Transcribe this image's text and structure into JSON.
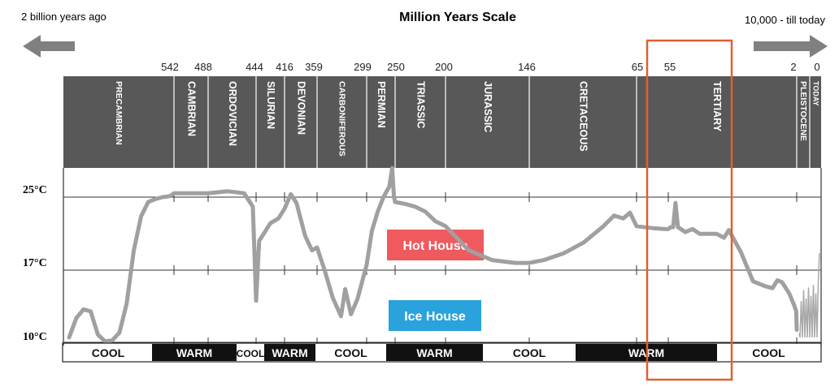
{
  "chart_data": {
    "type": "line",
    "title": "Million Years Scale",
    "left_label": "2 billion years ago",
    "right_label": "10,000 - till today",
    "time_ticks": [
      "542",
      "488",
      "444",
      "416",
      "359",
      "299",
      "250",
      "200",
      "146",
      "65",
      "55",
      "2",
      "0"
    ],
    "periods": [
      "PRECAMBRIAN",
      "CAMBRIAN",
      "ORDOVICIAN",
      "SILURIAN",
      "DEVONIAN",
      "CARBONIFEROUS",
      "PERMIAN",
      "TRIASSIC",
      "JURASSIC",
      "CRETACEOUS",
      "TERTIARY",
      "PLEISTOCENE",
      "TODAY"
    ],
    "y_ticks": [
      "25°C",
      "17°C",
      "10°C"
    ],
    "ylim": [
      10,
      25
    ],
    "climate_bar": [
      "COOL",
      "WARM",
      "COOL",
      "WARM",
      "COOL",
      "WARM",
      "COOL",
      "WARM",
      "COOL"
    ],
    "climate_types": [
      "cool",
      "warm",
      "cool",
      "warm",
      "cool",
      "warm",
      "cool",
      "warm",
      "cool"
    ],
    "annotations": {
      "hot_house": "Hot House",
      "ice_house": "Ice House"
    },
    "highlight_period": "TERTIARY",
    "series": [
      {
        "values": [
          [
            2000,
            10.5
          ],
          [
            1900,
            12.5
          ],
          [
            1800,
            13.4
          ],
          [
            1700,
            13.2
          ],
          [
            1600,
            10.8
          ],
          [
            1500,
            10.1
          ],
          [
            1400,
            10.2
          ],
          [
            1300,
            11
          ],
          [
            1200,
            14
          ],
          [
            1100,
            19.5
          ],
          [
            1000,
            23
          ],
          [
            900,
            24.5
          ],
          [
            800,
            24.8
          ],
          [
            700,
            25
          ],
          [
            600,
            25.1
          ],
          [
            560,
            25.3
          ],
          [
            542,
            25.4
          ],
          [
            520,
            25.4
          ],
          [
            488,
            25.4
          ],
          [
            470,
            25.6
          ],
          [
            455,
            25.4
          ],
          [
            447,
            24
          ],
          [
            444,
            14.3
          ],
          [
            441,
            20.5
          ],
          [
            436,
            21.3
          ],
          [
            430,
            22.3
          ],
          [
            422,
            22.8
          ],
          [
            416,
            23.8
          ],
          [
            405,
            25.3
          ],
          [
            395,
            24.4
          ],
          [
            380,
            21
          ],
          [
            368,
            19.5
          ],
          [
            359,
            19.8
          ],
          [
            350,
            17.5
          ],
          [
            340,
            14.6
          ],
          [
            330,
            12.7
          ],
          [
            325,
            15.5
          ],
          [
            318,
            12.9
          ],
          [
            310,
            14.5
          ],
          [
            299,
            18
          ],
          [
            290,
            21.5
          ],
          [
            280,
            23.5
          ],
          [
            270,
            25
          ],
          [
            260,
            26.1
          ],
          [
            255,
            28
          ],
          [
            252,
            25
          ],
          [
            250,
            24.5
          ],
          [
            240,
            24.3
          ],
          [
            230,
            24
          ],
          [
            220,
            23.5
          ],
          [
            210,
            22.5
          ],
          [
            200,
            22
          ],
          [
            185,
            19.5
          ],
          [
            170,
            18.5
          ],
          [
            155,
            18.2
          ],
          [
            146,
            18.2
          ],
          [
            135,
            18.5
          ],
          [
            120,
            19.2
          ],
          [
            105,
            20.3
          ],
          [
            90,
            22
          ],
          [
            82,
            23.1
          ],
          [
            75,
            22.8
          ],
          [
            70,
            23.4
          ],
          [
            65,
            22
          ],
          [
            60,
            21.8
          ],
          [
            56,
            21.7
          ],
          [
            55,
            21.7
          ],
          [
            54,
            21.9
          ],
          [
            53,
            21.9
          ],
          [
            52,
            24.4
          ],
          [
            51,
            21.9
          ],
          [
            48,
            21.4
          ],
          [
            45,
            21.7
          ],
          [
            42,
            21.2
          ],
          [
            38,
            21.2
          ],
          [
            35,
            21.2
          ],
          [
            32,
            20.8
          ],
          [
            30,
            21.6
          ],
          [
            25,
            19.3
          ],
          [
            20,
            16.3
          ],
          [
            15,
            15.8
          ],
          [
            12,
            15.6
          ],
          [
            10,
            16.4
          ],
          [
            8,
            16.2
          ],
          [
            5,
            15
          ],
          [
            3,
            13.8
          ],
          [
            2.2,
            13.2
          ],
          [
            2,
            11.3
          ]
        ]
      }
    ]
  }
}
